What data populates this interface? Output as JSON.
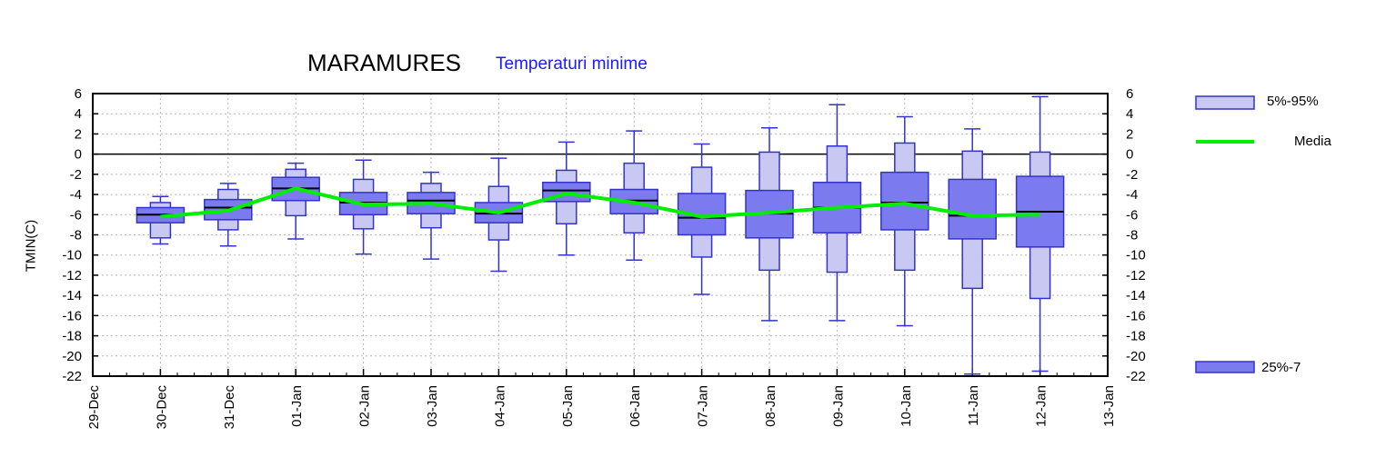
{
  "chart_data": {
    "type": "box",
    "title": "MARAMURES",
    "subtitle": "Temperaturi minime",
    "ylabel": "TMIN(C)",
    "ylim": [
      -22,
      6
    ],
    "yticks": [
      6,
      4,
      2,
      0,
      -2,
      -4,
      -6,
      -8,
      -10,
      -12,
      -14,
      -16,
      -18,
      -20,
      -22
    ],
    "xticks": [
      "29-Dec",
      "30-Dec",
      "31-Dec",
      "01-Jan",
      "02-Jan",
      "03-Jan",
      "04-Jan",
      "05-Jan",
      "06-Jan",
      "07-Jan",
      "08-Jan",
      "09-Jan",
      "10-Jan",
      "11-Jan",
      "12-Jan",
      "13-Jan"
    ],
    "grid": true,
    "reference_line": 0,
    "legend": [
      {
        "label": "5%-95%",
        "color": "#c8c8f2"
      },
      {
        "label": "Media",
        "color": "#00ee00"
      },
      {
        "label": "25%-7",
        "color": "#7b7bef"
      }
    ],
    "colors": {
      "outer": "#c8c8f2",
      "inner": "#7b7bef",
      "edge": "#3333cc",
      "media": "#00ee00"
    },
    "boxes": [
      {
        "date": "30-Dec",
        "min": -8.9,
        "p5": -8.3,
        "p25": -6.8,
        "median": -6.0,
        "p75": -5.3,
        "p95": -4.8,
        "max": -4.2,
        "mean": -6.2
      },
      {
        "date": "31-Dec",
        "min": -9.1,
        "p5": -7.5,
        "p25": -6.5,
        "median": -5.3,
        "p75": -4.5,
        "p95": -3.5,
        "max": -2.9,
        "mean": -5.6
      },
      {
        "date": "01-Jan",
        "min": -8.4,
        "p5": -6.1,
        "p25": -4.6,
        "median": -3.4,
        "p75": -2.3,
        "p95": -1.5,
        "max": -0.9,
        "mean": -3.4
      },
      {
        "date": "02-Jan",
        "min": -9.9,
        "p5": -7.4,
        "p25": -6.0,
        "median": -4.8,
        "p75": -3.8,
        "p95": -2.5,
        "max": -0.6,
        "mean": -5.0
      },
      {
        "date": "03-Jan",
        "min": -10.4,
        "p5": -7.3,
        "p25": -5.9,
        "median": -4.6,
        "p75": -3.8,
        "p95": -2.9,
        "max": -1.8,
        "mean": -4.9
      },
      {
        "date": "04-Jan",
        "min": -11.6,
        "p5": -8.5,
        "p25": -6.8,
        "median": -5.9,
        "p75": -4.8,
        "p95": -3.2,
        "max": -0.4,
        "mean": -5.8
      },
      {
        "date": "05-Jan",
        "min": -10.0,
        "p5": -6.9,
        "p25": -4.7,
        "median": -3.6,
        "p75": -2.8,
        "p95": -1.6,
        "max": 1.2,
        "mean": -3.9
      },
      {
        "date": "06-Jan",
        "min": -10.5,
        "p5": -7.8,
        "p25": -5.9,
        "median": -4.6,
        "p75": -3.5,
        "p95": -0.9,
        "max": 2.3,
        "mean": -4.8
      },
      {
        "date": "07-Jan",
        "min": -13.9,
        "p5": -10.2,
        "p25": -8.0,
        "median": -6.3,
        "p75": -3.9,
        "p95": -1.3,
        "max": 1.0,
        "mean": -6.2
      },
      {
        "date": "08-Jan",
        "min": -16.5,
        "p5": -11.5,
        "p25": -8.3,
        "median": -5.9,
        "p75": -3.6,
        "p95": 0.2,
        "max": 2.6,
        "mean": -5.8
      },
      {
        "date": "09-Jan",
        "min": -16.5,
        "p5": -11.7,
        "p25": -7.8,
        "median": -5.3,
        "p75": -2.8,
        "p95": 0.8,
        "max": 4.9,
        "mean": -5.3
      },
      {
        "date": "10-Jan",
        "min": -17.0,
        "p5": -11.5,
        "p25": -7.5,
        "median": -4.8,
        "p75": -1.8,
        "p95": 1.1,
        "max": 3.7,
        "mean": -4.9
      },
      {
        "date": "11-Jan",
        "min": -21.8,
        "p5": -13.3,
        "p25": -8.4,
        "median": -6.1,
        "p75": -2.5,
        "p95": 0.3,
        "max": 2.5,
        "mean": -6.1
      },
      {
        "date": "12-Jan",
        "min": -21.5,
        "p5": -14.3,
        "p25": -9.2,
        "median": -5.7,
        "p75": -2.2,
        "p95": 0.2,
        "max": 5.7,
        "mean": -6.0
      }
    ]
  }
}
